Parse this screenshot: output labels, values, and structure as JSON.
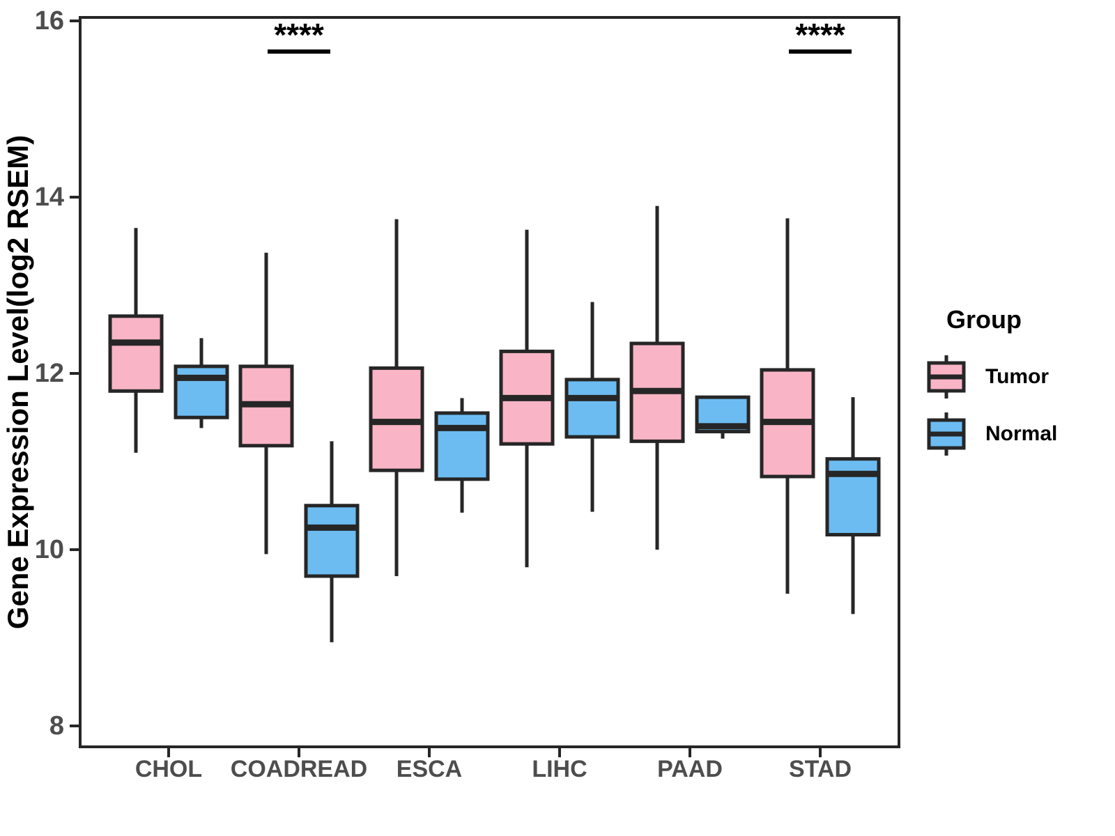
{
  "y_axis": {
    "label": "Gene Expression Level(log2 RSEM)",
    "ticks": [
      "16",
      "14",
      "12",
      "10",
      "8"
    ],
    "tick_values": [
      16,
      14,
      12,
      10,
      8
    ]
  },
  "x_axis": {
    "categories": [
      "CHOL",
      "COADREAD",
      "ESCA",
      "LIHC",
      "PAAD",
      "STAD"
    ]
  },
  "legend": {
    "title": "Group",
    "items": [
      {
        "label": "Tumor",
        "color": "#F9B4C5"
      },
      {
        "label": "Normal",
        "color": "#6CBCF2"
      }
    ]
  },
  "annotations": [
    {
      "category": "COADREAD",
      "text": "****"
    },
    {
      "category": "STAD",
      "text": "****"
    }
  ],
  "chart_data": {
    "type": "boxplot",
    "title": "",
    "xlabel": "",
    "ylabel": "Gene Expression Level(log2 RSEM)",
    "ylim": [
      7.76,
      16.05
    ],
    "grid": false,
    "legend_position": "right",
    "categories": [
      "CHOL",
      "COADREAD",
      "ESCA",
      "LIHC",
      "PAAD",
      "STAD"
    ],
    "series": [
      {
        "name": "Tumor",
        "fill": "#F9B4C5",
        "boxes": [
          {
            "low": 11.1,
            "q1": 11.8,
            "median": 12.35,
            "q3": 12.65,
            "high": 13.65
          },
          {
            "low": 9.95,
            "q1": 11.18,
            "median": 11.65,
            "q3": 12.08,
            "high": 13.37
          },
          {
            "low": 9.7,
            "q1": 10.9,
            "median": 11.45,
            "q3": 12.06,
            "high": 13.75
          },
          {
            "low": 9.8,
            "q1": 11.2,
            "median": 11.72,
            "q3": 12.25,
            "high": 13.63
          },
          {
            "low": 10.0,
            "q1": 11.23,
            "median": 11.8,
            "q3": 12.34,
            "high": 13.9
          },
          {
            "low": 9.5,
            "q1": 10.83,
            "median": 11.45,
            "q3": 12.04,
            "high": 13.76
          }
        ]
      },
      {
        "name": "Normal",
        "fill": "#6CBCF2",
        "boxes": [
          {
            "low": 11.38,
            "q1": 11.5,
            "median": 11.95,
            "q3": 12.08,
            "high": 12.4
          },
          {
            "low": 8.95,
            "q1": 9.7,
            "median": 10.25,
            "q3": 10.5,
            "high": 11.23
          },
          {
            "low": 10.42,
            "q1": 10.8,
            "median": 11.38,
            "q3": 11.55,
            "high": 11.72
          },
          {
            "low": 10.43,
            "q1": 11.28,
            "median": 11.72,
            "q3": 11.93,
            "high": 12.81
          },
          {
            "low": 11.26,
            "q1": 11.34,
            "median": 11.4,
            "q3": 11.73,
            "high": 11.73
          },
          {
            "low": 9.27,
            "q1": 10.17,
            "median": 10.86,
            "q3": 11.03,
            "high": 11.73
          }
        ]
      }
    ],
    "significance": [
      {
        "category_index": 1,
        "text": "****"
      },
      {
        "category_index": 5,
        "text": "****"
      }
    ]
  }
}
